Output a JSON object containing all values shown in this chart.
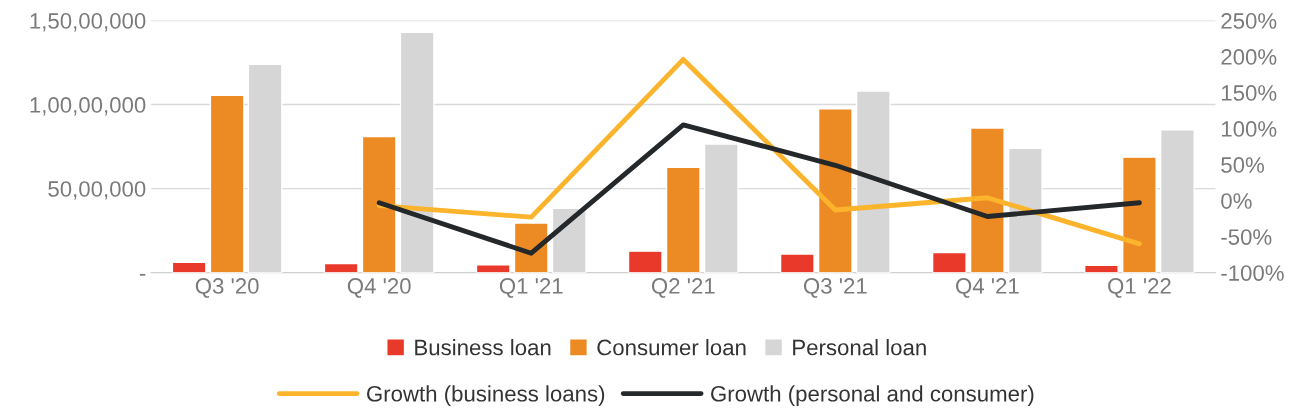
{
  "chart_data": {
    "type": "bar",
    "categories": [
      "Q3 '20",
      "Q4 '20",
      "Q1 '21",
      "Q2 '21",
      "Q3 '21",
      "Q4 '21",
      "Q1 '22"
    ],
    "series": [
      {
        "name": "Business loan",
        "color": "#e8392b",
        "values": [
          620000,
          540000,
          460000,
          1280000,
          1110000,
          1190000,
          430000
        ]
      },
      {
        "name": "Consumer loan",
        "color": "#ec8b23",
        "values": [
          10550000,
          8100000,
          2950000,
          6260000,
          9750000,
          8600000,
          6870000
        ]
      },
      {
        "name": "Personal loan",
        "color": "#d6d6d6",
        "values": [
          12400000,
          14300000,
          3830000,
          7650000,
          10800000,
          7400000,
          8500000
        ]
      },
      {
        "name": "Growth (business loans)",
        "type": "line",
        "axis": "y2",
        "color": "#fbb42b",
        "values": [
          null,
          -7,
          -23,
          196,
          -13,
          4,
          -60
        ]
      },
      {
        "name": "Growth (personal and consumer)",
        "type": "line",
        "axis": "y2",
        "color": "#24282a",
        "values": [
          null,
          -3,
          -73,
          105,
          49,
          -22,
          -3
        ]
      }
    ],
    "ylim": [
      0,
      15000000
    ],
    "yticks": [
      {
        "value": 0,
        "label": "-"
      },
      {
        "value": 5000000,
        "label": "50,00,000"
      },
      {
        "value": 10000000,
        "label": "1,00,00,000"
      },
      {
        "value": 15000000,
        "label": "1,50,00,000"
      }
    ],
    "y2lim": [
      -100,
      250
    ],
    "y2ticks": [
      {
        "value": -100,
        "label": "-100%"
      },
      {
        "value": -50,
        "label": "-50%"
      },
      {
        "value": 0,
        "label": "0%"
      },
      {
        "value": 50,
        "label": "50%"
      },
      {
        "value": 100,
        "label": "100%"
      },
      {
        "value": 150,
        "label": "150%"
      },
      {
        "value": 200,
        "label": "200%"
      },
      {
        "value": 250,
        "label": "250%"
      }
    ],
    "grid": "y",
    "legend": "bottom",
    "marker": "none",
    "line_style": "solid"
  }
}
